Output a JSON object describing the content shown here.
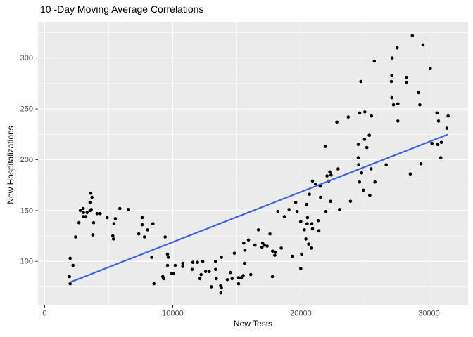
{
  "title": "10 -Day Moving Average Correlations",
  "chart_data": {
    "type": "scatter",
    "title": "10 -Day Moving Average Correlations",
    "xlabel": "New Tests",
    "ylabel": "New Hospitalizations",
    "x_ticks": [
      0,
      10000,
      20000,
      30000
    ],
    "x_minor_ticks": [
      5000,
      15000,
      25000
    ],
    "y_ticks": [
      100,
      150,
      200,
      250,
      300
    ],
    "y_minor_ticks": [
      75,
      125,
      175,
      225,
      275,
      325
    ],
    "xlim": [
      -520,
      33050
    ],
    "ylim": [
      57,
      335
    ],
    "grid": true,
    "legend_position": "none",
    "panel_bg": "#EBEBEB",
    "grid_color": "#FFFFFF",
    "point_color": "#000000",
    "tick_text_color": "#4D4D4D",
    "tick_mark_color": "#333333",
    "trend_color": "#3D63E8",
    "trend_line": {
      "x1": 2000,
      "y1": 79.5,
      "x2": 31400,
      "y2": 224.5
    },
    "points": [
      [
        1930,
        85
      ],
      [
        1990,
        103
      ],
      [
        1990,
        78
      ],
      [
        2210,
        96
      ],
      [
        2410,
        124
      ],
      [
        2680,
        138
      ],
      [
        2780,
        150
      ],
      [
        3010,
        152
      ],
      [
        3010,
        144
      ],
      [
        3030,
        148
      ],
      [
        3210,
        144
      ],
      [
        3310,
        148
      ],
      [
        3540,
        158
      ],
      [
        3540,
        150
      ],
      [
        3600,
        167
      ],
      [
        3640,
        151
      ],
      [
        3690,
        163
      ],
      [
        3760,
        126
      ],
      [
        3820,
        138
      ],
      [
        4090,
        147
      ],
      [
        4330,
        147
      ],
      [
        4880,
        143
      ],
      [
        5320,
        125
      ],
      [
        5370,
        122
      ],
      [
        5410,
        137
      ],
      [
        5520,
        142
      ],
      [
        5870,
        152
      ],
      [
        6530,
        151
      ],
      [
        7350,
        127
      ],
      [
        7610,
        143
      ],
      [
        7610,
        136
      ],
      [
        7790,
        124
      ],
      [
        8030,
        131
      ],
      [
        8360,
        104
      ],
      [
        8450,
        137
      ],
      [
        8530,
        78
      ],
      [
        9220,
        85
      ],
      [
        9280,
        83
      ],
      [
        9410,
        124
      ],
      [
        9590,
        107
      ],
      [
        9590,
        96
      ],
      [
        9650,
        104
      ],
      [
        9920,
        88
      ],
      [
        10050,
        88
      ],
      [
        10190,
        96
      ],
      [
        10780,
        98
      ],
      [
        10780,
        95
      ],
      [
        11510,
        92
      ],
      [
        11570,
        99
      ],
      [
        11930,
        99
      ],
      [
        12120,
        83
      ],
      [
        12210,
        87
      ],
      [
        12340,
        100
      ],
      [
        12570,
        90
      ],
      [
        12850,
        90
      ],
      [
        13010,
        75
      ],
      [
        13340,
        100
      ],
      [
        13340,
        92
      ],
      [
        13400,
        83
      ],
      [
        13730,
        76
      ],
      [
        13790,
        74
      ],
      [
        13760,
        69
      ],
      [
        13800,
        104
      ],
      [
        14260,
        82
      ],
      [
        14500,
        89
      ],
      [
        14630,
        83
      ],
      [
        14810,
        108
      ],
      [
        15140,
        84
      ],
      [
        15360,
        84
      ],
      [
        15140,
        78
      ],
      [
        15500,
        86
      ],
      [
        15540,
        118
      ],
      [
        15630,
        111
      ],
      [
        15590,
        98
      ],
      [
        15910,
        121
      ],
      [
        16090,
        87
      ],
      [
        16420,
        116
      ],
      [
        16680,
        131
      ],
      [
        16970,
        114
      ],
      [
        17010,
        118
      ],
      [
        17150,
        116
      ],
      [
        17370,
        115
      ],
      [
        17590,
        127
      ],
      [
        17780,
        85
      ],
      [
        17790,
        110
      ],
      [
        17960,
        106
      ],
      [
        18010,
        109
      ],
      [
        18200,
        149
      ],
      [
        18470,
        113
      ],
      [
        18710,
        144
      ],
      [
        19080,
        151
      ],
      [
        19330,
        105
      ],
      [
        19600,
        158
      ],
      [
        19710,
        149
      ],
      [
        19990,
        139
      ],
      [
        19990,
        93
      ],
      [
        20060,
        107
      ],
      [
        20270,
        131
      ],
      [
        20390,
        122
      ],
      [
        20450,
        156
      ],
      [
        20490,
        137
      ],
      [
        20520,
        143
      ],
      [
        20610,
        117
      ],
      [
        20670,
        166
      ],
      [
        20810,
        113
      ],
      [
        20850,
        137
      ],
      [
        20910,
        179
      ],
      [
        20910,
        132
      ],
      [
        21140,
        176
      ],
      [
        21350,
        140
      ],
      [
        21400,
        130
      ],
      [
        21500,
        174
      ],
      [
        21530,
        163
      ],
      [
        21900,
        213
      ],
      [
        21950,
        149
      ],
      [
        22040,
        184
      ],
      [
        22170,
        179
      ],
      [
        22260,
        188
      ],
      [
        22320,
        159
      ],
      [
        22350,
        185
      ],
      [
        22810,
        237
      ],
      [
        22900,
        191
      ],
      [
        23010,
        151
      ],
      [
        23700,
        242
      ],
      [
        23870,
        159
      ],
      [
        24480,
        215
      ],
      [
        24480,
        202
      ],
      [
        24520,
        195
      ],
      [
        24570,
        178
      ],
      [
        24590,
        246
      ],
      [
        24680,
        277
      ],
      [
        24740,
        187
      ],
      [
        24880,
        170
      ],
      [
        24970,
        220
      ],
      [
        24990,
        247
      ],
      [
        25150,
        212
      ],
      [
        25340,
        224
      ],
      [
        25380,
        165
      ],
      [
        25480,
        191
      ],
      [
        25510,
        243
      ],
      [
        25730,
        297
      ],
      [
        25780,
        178
      ],
      [
        26660,
        195
      ],
      [
        27060,
        277
      ],
      [
        27100,
        283
      ],
      [
        27100,
        261
      ],
      [
        27130,
        300
      ],
      [
        27230,
        254
      ],
      [
        27520,
        310
      ],
      [
        27570,
        255
      ],
      [
        27570,
        238
      ],
      [
        28250,
        281
      ],
      [
        28250,
        276
      ],
      [
        28540,
        186
      ],
      [
        28700,
        322
      ],
      [
        29190,
        266
      ],
      [
        29280,
        254
      ],
      [
        29370,
        196
      ],
      [
        29530,
        313
      ],
      [
        30100,
        290
      ],
      [
        30230,
        216
      ],
      [
        30620,
        246
      ],
      [
        30680,
        215
      ],
      [
        30740,
        238
      ],
      [
        30920,
        202
      ],
      [
        30960,
        217
      ],
      [
        31390,
        231
      ],
      [
        31490,
        243
      ]
    ]
  }
}
